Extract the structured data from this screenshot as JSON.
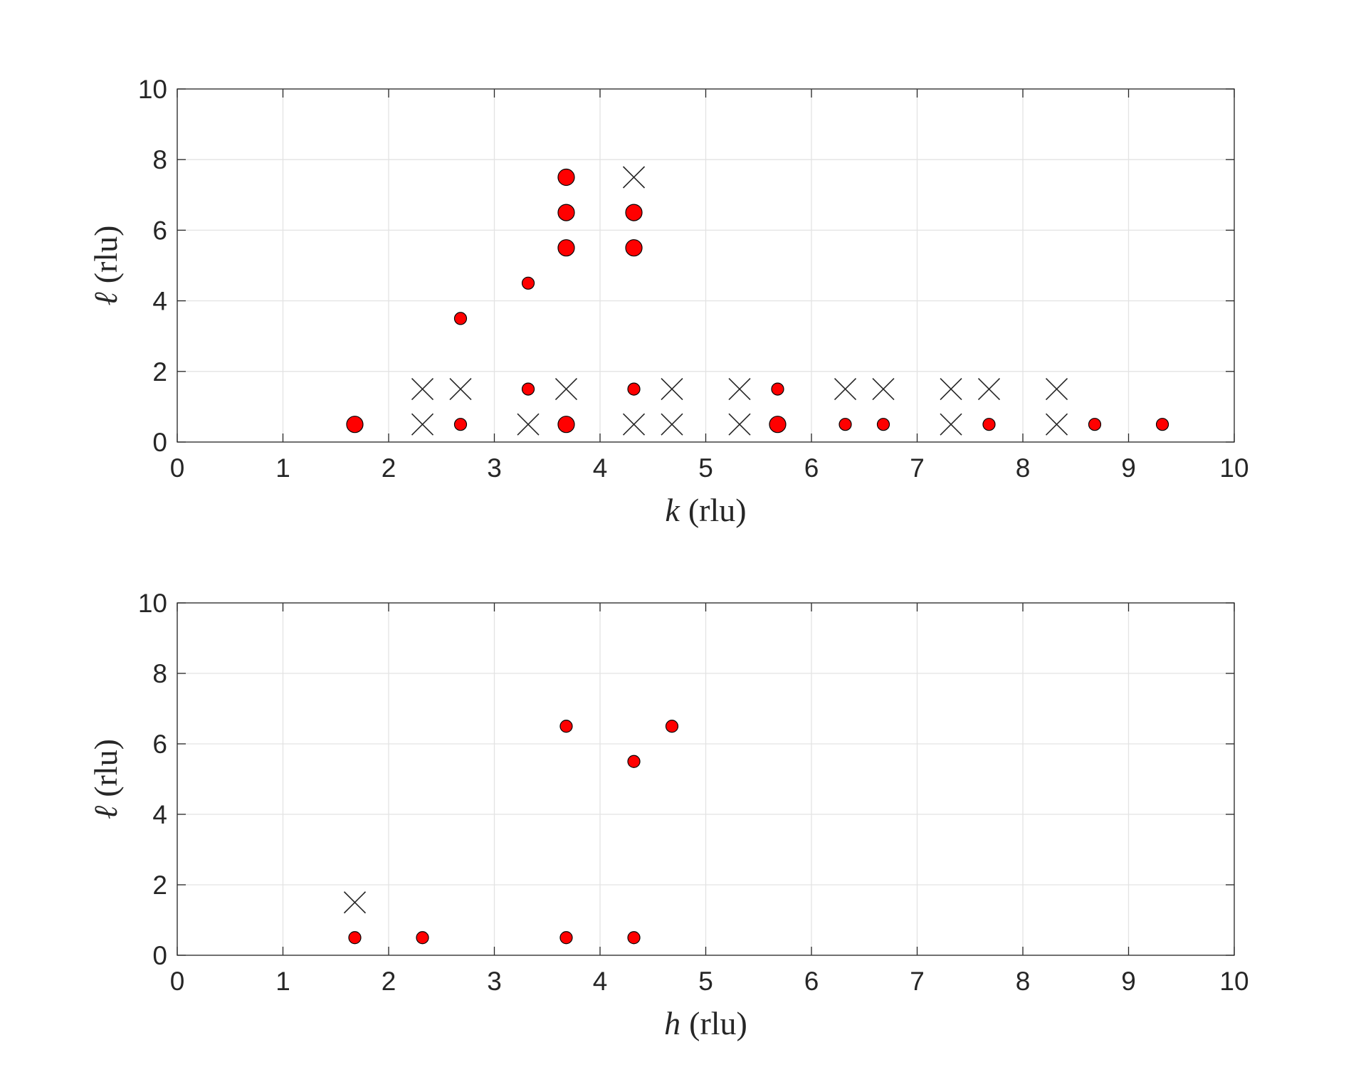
{
  "chart_data": [
    {
      "type": "scatter",
      "xlabel_var": "k",
      "xlabel_unit": "(rlu)",
      "ylabel_var": "ℓ",
      "ylabel_unit": "(rlu)",
      "xlim": [
        0,
        10
      ],
      "ylim": [
        0,
        10
      ],
      "xticks": [
        "0",
        "1",
        "2",
        "3",
        "4",
        "5",
        "6",
        "7",
        "8",
        "9",
        "10"
      ],
      "yticks": [
        "0",
        "2",
        "4",
        "6",
        "8",
        "10"
      ],
      "grid": true,
      "dot_color": "#ff0000",
      "circles": [
        {
          "x": 1.68,
          "y": 0.5,
          "size": "large"
        },
        {
          "x": 2.68,
          "y": 0.5,
          "size": "small"
        },
        {
          "x": 3.68,
          "y": 0.5,
          "size": "large"
        },
        {
          "x": 5.68,
          "y": 0.5,
          "size": "large"
        },
        {
          "x": 6.32,
          "y": 0.5,
          "size": "small"
        },
        {
          "x": 6.68,
          "y": 0.5,
          "size": "small"
        },
        {
          "x": 7.68,
          "y": 0.5,
          "size": "small"
        },
        {
          "x": 8.68,
          "y": 0.5,
          "size": "small"
        },
        {
          "x": 9.32,
          "y": 0.5,
          "size": "small"
        },
        {
          "x": 3.32,
          "y": 1.5,
          "size": "small"
        },
        {
          "x": 4.32,
          "y": 1.5,
          "size": "small"
        },
        {
          "x": 5.68,
          "y": 1.5,
          "size": "small"
        },
        {
          "x": 2.68,
          "y": 3.5,
          "size": "small"
        },
        {
          "x": 3.32,
          "y": 4.5,
          "size": "small"
        },
        {
          "x": 3.68,
          "y": 5.5,
          "size": "large"
        },
        {
          "x": 4.32,
          "y": 5.5,
          "size": "large"
        },
        {
          "x": 3.68,
          "y": 6.5,
          "size": "large"
        },
        {
          "x": 4.32,
          "y": 6.5,
          "size": "large"
        },
        {
          "x": 3.68,
          "y": 7.5,
          "size": "large"
        }
      ],
      "crosses": [
        {
          "x": 2.32,
          "y": 0.5
        },
        {
          "x": 3.32,
          "y": 0.5
        },
        {
          "x": 4.32,
          "y": 0.5
        },
        {
          "x": 4.68,
          "y": 0.5
        },
        {
          "x": 5.32,
          "y": 0.5
        },
        {
          "x": 7.32,
          "y": 0.5
        },
        {
          "x": 8.32,
          "y": 0.5
        },
        {
          "x": 2.32,
          "y": 1.5
        },
        {
          "x": 2.68,
          "y": 1.5
        },
        {
          "x": 3.68,
          "y": 1.5
        },
        {
          "x": 4.68,
          "y": 1.5
        },
        {
          "x": 5.32,
          "y": 1.5
        },
        {
          "x": 6.32,
          "y": 1.5
        },
        {
          "x": 6.68,
          "y": 1.5
        },
        {
          "x": 7.32,
          "y": 1.5
        },
        {
          "x": 7.68,
          "y": 1.5
        },
        {
          "x": 8.32,
          "y": 1.5
        },
        {
          "x": 4.32,
          "y": 7.5
        }
      ]
    },
    {
      "type": "scatter",
      "xlabel_var": "h",
      "xlabel_unit": "(rlu)",
      "ylabel_var": "ℓ",
      "ylabel_unit": "(rlu)",
      "xlim": [
        0,
        10
      ],
      "ylim": [
        0,
        10
      ],
      "xticks": [
        "0",
        "1",
        "2",
        "3",
        "4",
        "5",
        "6",
        "7",
        "8",
        "9",
        "10"
      ],
      "yticks": [
        "0",
        "2",
        "4",
        "6",
        "8",
        "10"
      ],
      "grid": true,
      "dot_color": "#ff0000",
      "circles": [
        {
          "x": 1.68,
          "y": 0.5,
          "size": "small"
        },
        {
          "x": 2.32,
          "y": 0.5,
          "size": "small"
        },
        {
          "x": 3.68,
          "y": 0.5,
          "size": "small"
        },
        {
          "x": 4.32,
          "y": 0.5,
          "size": "small"
        },
        {
          "x": 4.32,
          "y": 5.5,
          "size": "small"
        },
        {
          "x": 3.68,
          "y": 6.5,
          "size": "small"
        },
        {
          "x": 4.68,
          "y": 6.5,
          "size": "small"
        }
      ],
      "crosses": [
        {
          "x": 1.68,
          "y": 1.5
        }
      ]
    }
  ]
}
